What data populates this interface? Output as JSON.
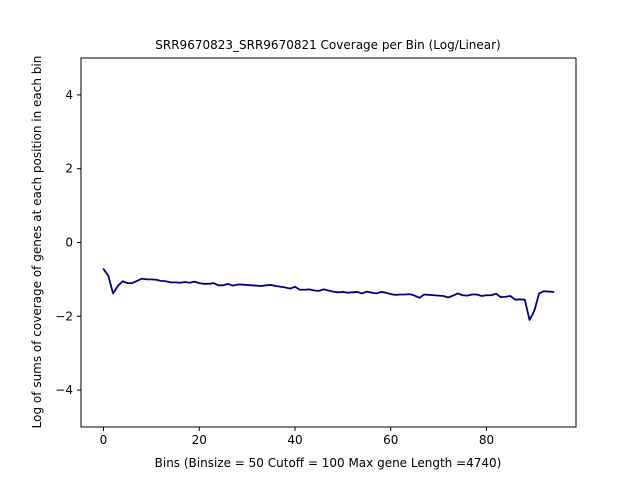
{
  "chart_data": {
    "type": "line",
    "title": "SRR9670823_SRR9670821 Coverage per Bin (Log/Linear)",
    "xlabel": "Bins  (Binsize = 50 Cutoff = 100 Max gene Length =4740)",
    "ylabel": "Log of sums of coverage of genes at each position in each bin",
    "xlim": [
      -4.7,
      98.7
    ],
    "ylim": [
      -5,
      5
    ],
    "xticks": [
      0,
      20,
      40,
      60,
      80
    ],
    "yticks": [
      -4,
      -2,
      0,
      2,
      4
    ],
    "grid": false,
    "series": [
      {
        "color": "#000080",
        "x": [
          0,
          1,
          2,
          3,
          4,
          5,
          6,
          7,
          8,
          9,
          10,
          11,
          12,
          13,
          14,
          15,
          16,
          17,
          18,
          19,
          20,
          21,
          22,
          23,
          24,
          25,
          26,
          27,
          28,
          29,
          30,
          31,
          32,
          33,
          34,
          35,
          36,
          37,
          38,
          39,
          40,
          41,
          42,
          43,
          44,
          45,
          46,
          47,
          48,
          49,
          50,
          51,
          52,
          53,
          54,
          55,
          56,
          57,
          58,
          59,
          60,
          61,
          62,
          63,
          64,
          65,
          66,
          67,
          68,
          69,
          70,
          71,
          72,
          73,
          74,
          75,
          76,
          77,
          78,
          79,
          80,
          81,
          82,
          83,
          84,
          85,
          86,
          87,
          88,
          89,
          90,
          91,
          92,
          93,
          94
        ],
        "y": [
          -0.72,
          -0.9,
          -1.38,
          -1.18,
          -1.05,
          -1.1,
          -1.1,
          -1.04,
          -0.98,
          -1.0,
          -1.0,
          -1.01,
          -1.04,
          -1.05,
          -1.08,
          -1.08,
          -1.09,
          -1.07,
          -1.09,
          -1.06,
          -1.1,
          -1.12,
          -1.12,
          -1.1,
          -1.16,
          -1.16,
          -1.12,
          -1.17,
          -1.14,
          -1.14,
          -1.15,
          -1.16,
          -1.17,
          -1.18,
          -1.16,
          -1.15,
          -1.18,
          -1.2,
          -1.22,
          -1.25,
          -1.2,
          -1.28,
          -1.28,
          -1.27,
          -1.3,
          -1.31,
          -1.27,
          -1.3,
          -1.33,
          -1.35,
          -1.34,
          -1.36,
          -1.35,
          -1.34,
          -1.38,
          -1.33,
          -1.36,
          -1.38,
          -1.34,
          -1.36,
          -1.4,
          -1.42,
          -1.41,
          -1.41,
          -1.4,
          -1.44,
          -1.5,
          -1.41,
          -1.42,
          -1.43,
          -1.44,
          -1.45,
          -1.49,
          -1.44,
          -1.38,
          -1.43,
          -1.44,
          -1.41,
          -1.41,
          -1.45,
          -1.43,
          -1.43,
          -1.39,
          -1.48,
          -1.47,
          -1.45,
          -1.55,
          -1.54,
          -1.55,
          -2.1,
          -1.85,
          -1.38,
          -1.32,
          -1.33,
          -1.34
        ]
      }
    ]
  }
}
